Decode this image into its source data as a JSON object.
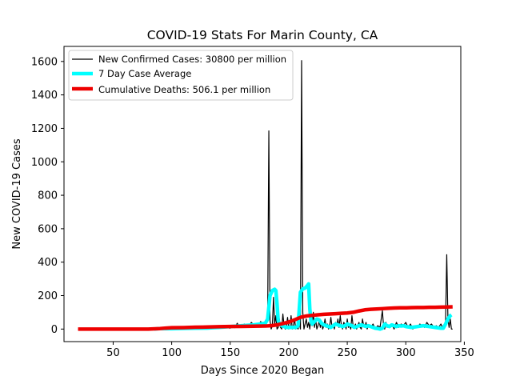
{
  "chart_data": {
    "type": "line",
    "title": "COVID-19 Stats For Marin County, CA",
    "xlabel": "Days Since 2020 Began",
    "ylabel": "New COVID-19 Cases",
    "xlim": [
      8,
      347
    ],
    "ylim": [
      -75,
      1690
    ],
    "xticks": [
      50,
      100,
      150,
      200,
      250,
      300,
      350
    ],
    "yticks": [
      0,
      200,
      400,
      600,
      800,
      1000,
      1200,
      1400,
      1600
    ],
    "grid": false,
    "legend_position": "top-left",
    "series": [
      {
        "name": "New Confirmed Cases: 30800 per million",
        "color": "#000000",
        "line_width": 1.2,
        "x": [
          20,
          40,
          60,
          70,
          80,
          90,
          95,
          100,
          105,
          110,
          115,
          120,
          125,
          130,
          135,
          140,
          145,
          150,
          152,
          154,
          156,
          158,
          160,
          162,
          164,
          166,
          168,
          170,
          172,
          174,
          176,
          178,
          180,
          182,
          183,
          184,
          185,
          186,
          187,
          188,
          189,
          190,
          191,
          192,
          193,
          194,
          195,
          196,
          197,
          198,
          199,
          200,
          201,
          202,
          203,
          204,
          205,
          206,
          207,
          208,
          209,
          210,
          211,
          212,
          213,
          214,
          215,
          216,
          217,
          218,
          219,
          220,
          221,
          222,
          223,
          224,
          225,
          226,
          227,
          228,
          229,
          230,
          231,
          232,
          233,
          234,
          235,
          236,
          237,
          238,
          239,
          240,
          241,
          242,
          243,
          244,
          245,
          246,
          247,
          248,
          249,
          250,
          251,
          252,
          253,
          254,
          255,
          256,
          257,
          258,
          259,
          260,
          261,
          262,
          263,
          264,
          265,
          266,
          267,
          268,
          270,
          272,
          274,
          276,
          278,
          280,
          281,
          282,
          283,
          284,
          286,
          288,
          290,
          292,
          294,
          296,
          298,
          300,
          302,
          304,
          306,
          308,
          310,
          312,
          314,
          316,
          318,
          320,
          322,
          324,
          326,
          328,
          330,
          332,
          333,
          334,
          335,
          336,
          337,
          338,
          339,
          340
        ],
        "values": [
          0,
          1,
          2,
          0,
          3,
          0,
          5,
          2,
          0,
          1,
          8,
          2,
          5,
          0,
          10,
          3,
          12,
          5,
          20,
          8,
          35,
          10,
          15,
          30,
          20,
          12,
          40,
          25,
          30,
          15,
          45,
          30,
          20,
          60,
          1185,
          50,
          0,
          20,
          190,
          30,
          80,
          0,
          10,
          60,
          10,
          0,
          90,
          20,
          0,
          15,
          70,
          0,
          10,
          80,
          0,
          20,
          60,
          0,
          10,
          0,
          40,
          0,
          1605,
          100,
          0,
          30,
          60,
          10,
          40,
          0,
          80,
          20,
          100,
          10,
          60,
          0,
          20,
          50,
          10,
          40,
          0,
          20,
          60,
          10,
          30,
          0,
          20,
          70,
          10,
          30,
          0,
          40,
          20,
          60,
          10,
          80,
          20,
          0,
          40,
          30,
          0,
          60,
          10,
          20,
          0,
          80,
          20,
          10,
          30,
          0,
          20,
          40,
          10,
          0,
          60,
          20,
          10,
          40,
          0,
          20,
          10,
          30,
          0,
          20,
          10,
          110,
          20,
          0,
          40,
          10,
          20,
          30,
          0,
          40,
          10,
          30,
          20,
          40,
          10,
          30,
          0,
          20,
          10,
          30,
          20,
          10,
          40,
          20,
          30,
          10,
          20,
          10,
          30,
          0,
          20,
          50,
          445,
          60,
          10,
          60,
          0,
          0
        ]
      },
      {
        "name": "7 Day Case Average",
        "color": "#00ffff",
        "line_width": 4.5,
        "x": [
          85,
          90,
          100,
          110,
          120,
          130,
          135,
          140,
          145,
          150,
          160,
          170,
          175,
          180,
          182,
          184,
          186,
          188,
          189,
          190,
          191,
          192,
          194,
          196,
          198,
          200,
          202,
          204,
          206,
          208,
          210,
          212,
          214,
          216,
          217,
          218,
          219,
          220,
          222,
          224,
          226,
          228,
          230,
          232,
          234,
          236,
          238,
          240,
          242,
          244,
          246,
          248,
          250,
          252,
          254,
          256,
          258,
          260,
          262,
          264,
          266,
          268,
          270,
          272,
          274,
          276,
          278,
          280,
          282,
          284,
          286,
          288,
          290,
          292,
          294,
          296,
          298,
          300,
          305,
          310,
          315,
          320,
          325,
          330,
          332,
          334,
          336,
          338,
          339
        ],
        "values": [
          0,
          3,
          2,
          4,
          5,
          6,
          8,
          10,
          12,
          15,
          20,
          25,
          30,
          35,
          60,
          200,
          230,
          238,
          230,
          150,
          50,
          30,
          20,
          15,
          10,
          10,
          10,
          10,
          10,
          20,
          220,
          240,
          245,
          260,
          270,
          120,
          50,
          30,
          45,
          60,
          55,
          35,
          25,
          20,
          15,
          10,
          20,
          30,
          25,
          20,
          15,
          20,
          30,
          25,
          20,
          10,
          15,
          20,
          25,
          20,
          15,
          20,
          15,
          10,
          5,
          3,
          0,
          5,
          30,
          20,
          15,
          25,
          20,
          15,
          20,
          18,
          20,
          15,
          10,
          15,
          20,
          15,
          10,
          5,
          5,
          30,
          60,
          80,
          85
        ]
      },
      {
        "name": "Cumulative Deaths: 506.1 per million",
        "color": "#ee0000",
        "line_width": 4.5,
        "x": [
          20,
          40,
          60,
          80,
          90,
          95,
          100,
          110,
          120,
          130,
          140,
          150,
          160,
          170,
          180,
          185,
          190,
          195,
          200,
          205,
          210,
          215,
          220,
          225,
          230,
          235,
          240,
          245,
          250,
          255,
          260,
          265,
          270,
          275,
          280,
          285,
          290,
          295,
          300,
          305,
          310,
          315,
          320,
          325,
          330,
          335,
          340
        ],
        "values": [
          0,
          0,
          0,
          0,
          3,
          6,
          8,
          9,
          11,
          12,
          14,
          15,
          16,
          17,
          18,
          20,
          25,
          33,
          42,
          55,
          70,
          78,
          82,
          85,
          88,
          90,
          92,
          94,
          96,
          100,
          108,
          115,
          118,
          120,
          122,
          124,
          126,
          127,
          127,
          128,
          129,
          129,
          130,
          130,
          131,
          132,
          133
        ]
      }
    ]
  }
}
